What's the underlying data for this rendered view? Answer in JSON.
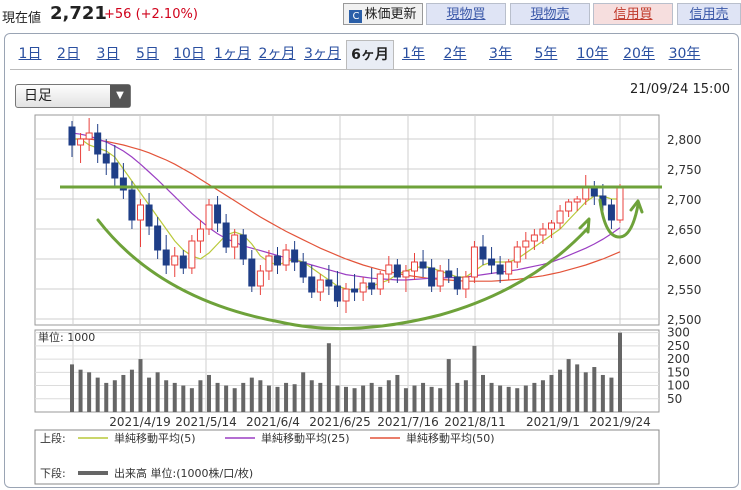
{
  "header": {
    "label": "現在値",
    "price": "2,721",
    "change": "+56 (+2.10%)",
    "buttons": {
      "update": "株価更新",
      "spot_buy": "現物買",
      "spot_sell": "現物売",
      "margin_buy": "信用買",
      "margin_sell": "信用売"
    }
  },
  "tabs": [
    "1日",
    "2日",
    "3日",
    "5日",
    "10日",
    "1ヶ月",
    "2ヶ月",
    "3ヶ月",
    "6ヶ月",
    "1年",
    "2年",
    "3年",
    "5年",
    "10年",
    "20年",
    "30年"
  ],
  "active_tab": "6ヶ月",
  "period_select": "日足",
  "timestamp": "21/09/24 15:00",
  "colors": {
    "up": "#e8413c",
    "down": "#1f3e87",
    "ma5": "#b9c93a",
    "ma25": "#9b3fc3",
    "ma50": "#e3543a",
    "annotation": "#6ea23a",
    "volume": "#666666"
  },
  "chart_data": {
    "type": "candlestick",
    "x_ticks": [
      "2021/4/19",
      "2021/5/14",
      "2021/6/4",
      "2021/6/25",
      "2021/7/16",
      "2021/8/11",
      "2021/9/1",
      "2021/9/24"
    ],
    "price_axis": {
      "ticks": [
        "2,800",
        "2,750",
        "2,700",
        "2,650",
        "2,600",
        "2,550",
        "2,500"
      ],
      "range": [
        2490,
        2840
      ]
    },
    "volume_axis": {
      "unit_label": "単位: 1000",
      "ticks": [
        "300",
        "250",
        "200",
        "150",
        "100",
        "50"
      ],
      "range": [
        0,
        310
      ]
    },
    "candles": [
      [
        2820,
        2830,
        2770,
        2790
      ],
      [
        2790,
        2810,
        2760,
        2800
      ],
      [
        2800,
        2835,
        2780,
        2810
      ],
      [
        2810,
        2825,
        2760,
        2775
      ],
      [
        2775,
        2800,
        2740,
        2760
      ],
      [
        2760,
        2790,
        2720,
        2735
      ],
      [
        2735,
        2760,
        2700,
        2715
      ],
      [
        2715,
        2730,
        2650,
        2665
      ],
      [
        2665,
        2700,
        2620,
        2690
      ],
      [
        2690,
        2710,
        2640,
        2655
      ],
      [
        2655,
        2670,
        2600,
        2615
      ],
      [
        2615,
        2640,
        2575,
        2590
      ],
      [
        2590,
        2620,
        2570,
        2605
      ],
      [
        2605,
        2615,
        2575,
        2585
      ],
      [
        2585,
        2640,
        2575,
        2630
      ],
      [
        2630,
        2665,
        2610,
        2650
      ],
      [
        2650,
        2700,
        2640,
        2690
      ],
      [
        2690,
        2705,
        2645,
        2660
      ],
      [
        2660,
        2675,
        2610,
        2620
      ],
      [
        2620,
        2650,
        2600,
        2640
      ],
      [
        2640,
        2650,
        2590,
        2600
      ],
      [
        2600,
        2615,
        2545,
        2555
      ],
      [
        2555,
        2590,
        2540,
        2580
      ],
      [
        2580,
        2615,
        2565,
        2605
      ],
      [
        2605,
        2620,
        2575,
        2590
      ],
      [
        2590,
        2625,
        2580,
        2615
      ],
      [
        2615,
        2630,
        2580,
        2595
      ],
      [
        2595,
        2610,
        2560,
        2570
      ],
      [
        2570,
        2590,
        2535,
        2545
      ],
      [
        2545,
        2575,
        2530,
        2565
      ],
      [
        2565,
        2590,
        2540,
        2555
      ],
      [
        2555,
        2580,
        2520,
        2530
      ],
      [
        2530,
        2560,
        2510,
        2550
      ],
      [
        2550,
        2575,
        2530,
        2545
      ],
      [
        2545,
        2570,
        2530,
        2560
      ],
      [
        2560,
        2585,
        2540,
        2550
      ],
      [
        2550,
        2580,
        2540,
        2575
      ],
      [
        2575,
        2605,
        2560,
        2590
      ],
      [
        2590,
        2600,
        2560,
        2570
      ],
      [
        2570,
        2590,
        2545,
        2580
      ],
      [
        2580,
        2610,
        2565,
        2595
      ],
      [
        2595,
        2615,
        2570,
        2585
      ],
      [
        2585,
        2600,
        2545,
        2555
      ],
      [
        2555,
        2590,
        2545,
        2580
      ],
      [
        2580,
        2600,
        2560,
        2570
      ],
      [
        2570,
        2585,
        2540,
        2550
      ],
      [
        2550,
        2580,
        2535,
        2570
      ],
      [
        2570,
        2630,
        2560,
        2620
      ],
      [
        2620,
        2640,
        2590,
        2600
      ],
      [
        2600,
        2620,
        2575,
        2590
      ],
      [
        2590,
        2605,
        2560,
        2575
      ],
      [
        2575,
        2600,
        2565,
        2595
      ],
      [
        2595,
        2630,
        2585,
        2620
      ],
      [
        2620,
        2645,
        2600,
        2630
      ],
      [
        2630,
        2650,
        2615,
        2640
      ],
      [
        2640,
        2660,
        2625,
        2650
      ],
      [
        2650,
        2665,
        2635,
        2660
      ],
      [
        2660,
        2690,
        2650,
        2680
      ],
      [
        2680,
        2700,
        2670,
        2695
      ],
      [
        2695,
        2705,
        2680,
        2700
      ],
      [
        2700,
        2740,
        2690,
        2720
      ],
      [
        2720,
        2730,
        2690,
        2705
      ],
      [
        2705,
        2725,
        2680,
        2690
      ],
      [
        2690,
        2700,
        2650,
        2665
      ],
      [
        2665,
        2725,
        2660,
        2721
      ]
    ],
    "volumes": [
      180,
      160,
      150,
      130,
      110,
      120,
      140,
      160,
      200,
      130,
      150,
      120,
      110,
      100,
      90,
      120,
      140,
      110,
      100,
      90,
      110,
      130,
      120,
      100,
      95,
      110,
      105,
      150,
      120,
      110,
      260,
      100,
      95,
      90,
      100,
      110,
      95,
      120,
      140,
      90,
      100,
      110,
      95,
      90,
      200,
      110,
      120,
      250,
      140,
      110,
      100,
      95,
      90,
      100,
      110,
      120,
      140,
      160,
      200,
      180,
      150,
      170,
      140,
      130,
      300
    ],
    "series": [
      {
        "name": "単純移動平均(5)",
        "role": "ma5"
      },
      {
        "name": "単純移動平均(25)",
        "role": "ma25"
      },
      {
        "name": "単純移動平均(50)",
        "role": "ma50"
      }
    ],
    "ma_points": {
      "ma5": [
        2800,
        2800,
        2790,
        2785,
        2780,
        2770,
        2750,
        2730,
        2710,
        2690,
        2670,
        2650,
        2630,
        2615,
        2605,
        2600,
        2610,
        2625,
        2640,
        2645,
        2640,
        2625,
        2605,
        2595,
        2590,
        2595,
        2600,
        2595,
        2585,
        2575,
        2565,
        2555,
        2550,
        2548,
        2552,
        2555,
        2560,
        2565,
        2575,
        2580,
        2585,
        2588,
        2585,
        2580,
        2575,
        2570,
        2570,
        2580,
        2590,
        2595,
        2595,
        2595,
        2600,
        2610,
        2620,
        2630,
        2640,
        2650,
        2665,
        2680,
        2695,
        2705,
        2705,
        2700,
        2700
      ],
      "ma25": [
        2810,
        2808,
        2805,
        2800,
        2795,
        2788,
        2780,
        2770,
        2758,
        2745,
        2732,
        2718,
        2704,
        2690,
        2676,
        2664,
        2652,
        2642,
        2634,
        2628,
        2622,
        2618,
        2614,
        2610,
        2606,
        2602,
        2598,
        2594,
        2590,
        2586,
        2582,
        2578,
        2574,
        2572,
        2570,
        2568,
        2567,
        2566,
        2565,
        2565,
        2566,
        2567,
        2568,
        2568,
        2569,
        2569,
        2570,
        2572,
        2574,
        2576,
        2578,
        2580,
        2582,
        2585,
        2588,
        2591,
        2595,
        2600,
        2606,
        2612,
        2618,
        2625,
        2633,
        2642,
        2652
      ],
      "ma50": [
        2800,
        2800,
        2800,
        2798,
        2796,
        2793,
        2790,
        2786,
        2782,
        2777,
        2771,
        2765,
        2758,
        2750,
        2742,
        2733,
        2724,
        2715,
        2706,
        2697,
        2688,
        2679,
        2670,
        2662,
        2654,
        2646,
        2639,
        2632,
        2625,
        2618,
        2612,
        2606,
        2600,
        2595,
        2590,
        2586,
        2582,
        2579,
        2576,
        2573,
        2571,
        2569,
        2567,
        2566,
        2565,
        2564,
        2563,
        2563,
        2563,
        2563,
        2564,
        2565,
        2566,
        2568,
        2570,
        2572,
        2575,
        2578,
        2582,
        2586,
        2590,
        2595,
        2600,
        2606,
        2612
      ]
    },
    "annotations": {
      "resistance_level": 2720
    }
  },
  "legend": {
    "upper_label": "上段:",
    "lower_label": "下段:",
    "volume_label": "出来高 単位:(1000株/口/枚)"
  }
}
